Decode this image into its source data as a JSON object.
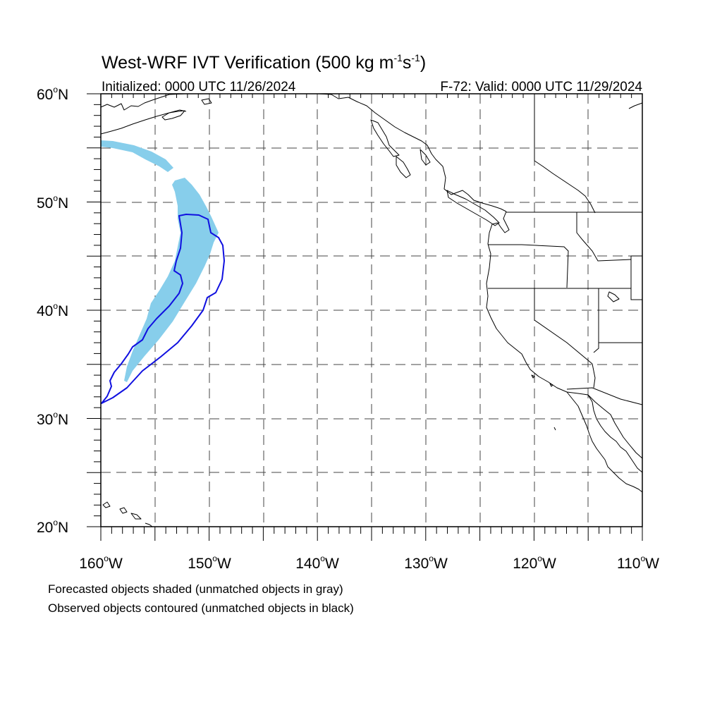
{
  "title_main": "West-WRF IVT Verification (500 kg m",
  "title_exp1": "-1",
  "title_mid": "s",
  "title_exp2": "-1",
  "title_end": ")",
  "initialized": "Initialized: 0000 UTC 11/26/2024",
  "valid": "F-72: Valid: 0000 UTC 11/29/2024",
  "lat_labels": [
    "60",
    "50",
    "40",
    "30",
    "20"
  ],
  "lat_suffix": "N",
  "lon_labels": [
    "160",
    "150",
    "140",
    "130",
    "120",
    "110"
  ],
  "lon_suffix": "W",
  "degree": "o",
  "caption_forecast": "Forecasted objects shaded (unmatched objects in gray)",
  "caption_observed": "Observed objects contoured (unmatched objects in black)",
  "colors": {
    "forecast_fill": "#87ceeb",
    "observed_contour": "#1010e0"
  }
}
